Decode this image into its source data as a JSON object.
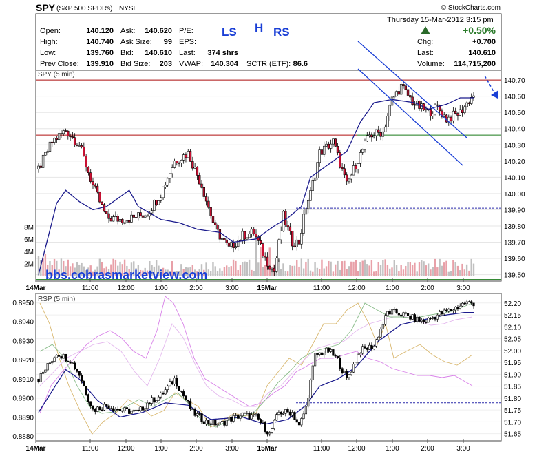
{
  "header": {
    "symbol": "SPY",
    "name": "(S&P 500 SPDRs)",
    "exchange": "NYSE",
    "brand": "© StockCharts.com",
    "datetime": "Thursday  15-Mar-2012  3:15 pm",
    "pct_change": "+0.50%"
  },
  "quote": {
    "open_label": "Open:",
    "open": "140.120",
    "high_label": "High:",
    "high": "140.740",
    "low_label": "Low:",
    "low": "139.760",
    "prev_label": "Prev Close:",
    "prev": "139.910",
    "ask_label": "Ask:",
    "ask": "140.620",
    "asksize_label": "Ask Size:",
    "asksize": "99",
    "bid_label": "Bid:",
    "bid": "140.610",
    "bidsize_label": "Bid Size:",
    "bidsize": "203",
    "pe_label": "P/E:",
    "pe": "",
    "eps_label": "EPS:",
    "eps": "",
    "lastshrs_label": "Last:",
    "lastshrs": "374 shrs",
    "vwap_label": "VWAP:",
    "vwap": "140.304",
    "sctr_label": "SCTR (ETF):",
    "sctr": "86.6",
    "chg_label": "Chg:",
    "chg": "+0.700",
    "last_label": "Last:",
    "last": "140.610",
    "volume_label": "Volume:",
    "volume": "114,715,200"
  },
  "annotations": {
    "ls": "LS",
    "h": "H",
    "rs": "RS",
    "watermark": "bbs.cobrasmarketview.com"
  },
  "colors": {
    "up_candle": "#ffffff",
    "down_candle": "#cc1133",
    "wick": "#000000",
    "ma_line": "#1a1a8c",
    "annotation_blue": "#1a3fd6",
    "resist_line": "#b01010",
    "support_line": "#1a7a1a",
    "volume_gray": "#c0c0c0",
    "volume_red": "#e8a0a8"
  },
  "chart_data": [
    {
      "type": "candlestick",
      "title": "SPY (5 min)",
      "x": [
        "14Mar",
        "11:00",
        "12:00",
        "1:00",
        "2:00",
        "3:00",
        "15Mar",
        "11:00",
        "12:00",
        "1:00",
        "2:00",
        "3:00"
      ],
      "y_ticks": [
        "140.70",
        "140.60",
        "140.50",
        "140.40",
        "140.30",
        "140.20",
        "140.10",
        "140.00",
        "139.90",
        "139.80",
        "139.70",
        "139.60",
        "139.50"
      ],
      "ylim": [
        139.46,
        140.76
      ],
      "volume_ticks": [
        "8M",
        "6M",
        "4M",
        "2M"
      ],
      "volume_max": 10,
      "reference_lines": {
        "resistance": 140.7,
        "support_upper": 140.36,
        "dashed_blue": 139.91,
        "support_lower": 139.47
      },
      "close_points": [
        [
          0,
          140.15
        ],
        [
          6,
          140.32
        ],
        [
          12,
          140.39
        ],
        [
          18,
          140.3
        ],
        [
          24,
          140.05
        ],
        [
          30,
          139.85
        ],
        [
          36,
          139.84
        ],
        [
          42,
          139.85
        ],
        [
          48,
          139.88
        ],
        [
          54,
          140.0
        ],
        [
          60,
          140.2
        ],
        [
          66,
          140.25
        ],
        [
          72,
          140.05
        ],
        [
          78,
          139.78
        ],
        [
          84,
          139.66
        ],
        [
          90,
          139.74
        ],
        [
          95,
          139.76
        ],
        [
          100,
          139.6
        ],
        [
          104,
          139.52
        ],
        [
          108,
          139.86
        ],
        [
          112,
          139.7
        ],
        [
          115,
          139.7
        ],
        [
          118,
          139.92
        ],
        [
          120,
          140.0
        ],
        [
          124,
          140.25
        ],
        [
          130,
          140.32
        ],
        [
          136,
          140.05
        ],
        [
          140,
          140.18
        ],
        [
          146,
          140.36
        ],
        [
          152,
          140.38
        ],
        [
          156,
          140.58
        ],
        [
          160,
          140.66
        ],
        [
          166,
          140.55
        ],
        [
          172,
          140.5
        ],
        [
          176,
          140.53
        ],
        [
          180,
          140.46
        ],
        [
          186,
          140.5
        ],
        [
          192,
          140.61
        ]
      ],
      "ma_points": [
        [
          0,
          139.5
        ],
        [
          8,
          139.94
        ],
        [
          12,
          140.02
        ],
        [
          18,
          139.95
        ],
        [
          24,
          139.9
        ],
        [
          30,
          139.92
        ],
        [
          36,
          139.98
        ],
        [
          40,
          140.02
        ],
        [
          44,
          139.92
        ],
        [
          54,
          139.84
        ],
        [
          62,
          139.82
        ],
        [
          70,
          139.78
        ],
        [
          80,
          139.76
        ],
        [
          86,
          139.7
        ],
        [
          96,
          139.72
        ],
        [
          100,
          139.76
        ],
        [
          104,
          139.8
        ],
        [
          110,
          139.85
        ],
        [
          116,
          139.92
        ],
        [
          120,
          140.1
        ],
        [
          128,
          140.18
        ],
        [
          136,
          140.26
        ],
        [
          142,
          140.44
        ],
        [
          148,
          140.56
        ],
        [
          156,
          140.58
        ],
        [
          166,
          140.56
        ],
        [
          172,
          140.52
        ],
        [
          180,
          140.55
        ],
        [
          186,
          140.59
        ]
      ],
      "candle_count": 193
    },
    {
      "type": "line",
      "title": "RSP (5 min)",
      "y_ticks_left": [
        "0.8950",
        "0.8940",
        "0.8930",
        "0.8920",
        "0.8910",
        "0.8900",
        "0.8890",
        "0.8880"
      ],
      "y_ticks_right": [
        "52.20",
        "52.15",
        "52.10",
        "52.05",
        "52.00",
        "51.95",
        "51.90",
        "51.85",
        "51.80",
        "51.75",
        "51.70",
        "51.65"
      ],
      "ylim_right": [
        51.62,
        52.24
      ],
      "reference_line": 51.78,
      "close_points": [
        [
          0,
          51.88
        ],
        [
          8,
          51.99
        ],
        [
          14,
          51.96
        ],
        [
          18,
          51.9
        ],
        [
          24,
          51.75
        ],
        [
          30,
          51.77
        ],
        [
          36,
          51.75
        ],
        [
          44,
          51.74
        ],
        [
          48,
          51.78
        ],
        [
          54,
          51.81
        ],
        [
          60,
          51.88
        ],
        [
          68,
          51.74
        ],
        [
          74,
          51.7
        ],
        [
          80,
          51.69
        ],
        [
          84,
          51.71
        ],
        [
          90,
          51.73
        ],
        [
          96,
          51.72
        ],
        [
          102,
          51.65
        ],
        [
          106,
          51.74
        ],
        [
          112,
          51.74
        ],
        [
          115,
          51.68
        ],
        [
          118,
          51.76
        ],
        [
          122,
          51.98
        ],
        [
          128,
          52.0
        ],
        [
          132,
          51.96
        ],
        [
          136,
          51.88
        ],
        [
          142,
          52.0
        ],
        [
          148,
          52.02
        ],
        [
          154,
          52.16
        ],
        [
          158,
          52.16
        ],
        [
          164,
          52.14
        ],
        [
          170,
          52.12
        ],
        [
          176,
          52.15
        ],
        [
          182,
          52.17
        ],
        [
          188,
          52.2
        ]
      ],
      "ma_points": [
        [
          0,
          51.74
        ],
        [
          8,
          51.86
        ],
        [
          12,
          51.92
        ],
        [
          18,
          51.88
        ],
        [
          26,
          51.79
        ],
        [
          36,
          51.72
        ],
        [
          46,
          51.74
        ],
        [
          56,
          51.78
        ],
        [
          66,
          51.77
        ],
        [
          76,
          51.71
        ],
        [
          90,
          51.72
        ],
        [
          100,
          51.69
        ],
        [
          110,
          51.71
        ],
        [
          118,
          51.77
        ],
        [
          124,
          51.85
        ],
        [
          132,
          51.88
        ],
        [
          140,
          51.93
        ],
        [
          150,
          52.04
        ],
        [
          160,
          52.11
        ],
        [
          170,
          52.13
        ],
        [
          180,
          52.15
        ],
        [
          188,
          52.16
        ]
      ]
    }
  ]
}
